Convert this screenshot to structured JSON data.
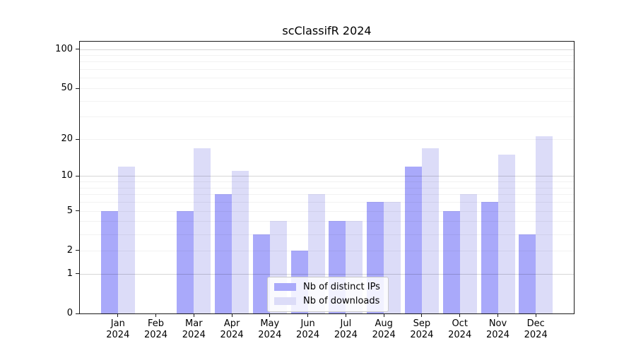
{
  "figure": {
    "title": "scClassifR 2024",
    "background": "#ffffff"
  },
  "legend": {
    "items": [
      {
        "label": "Nb of distinct IPs",
        "color": "#a9a9fa"
      },
      {
        "label": "Nb of downloads",
        "color": "#dcdcf8"
      }
    ]
  },
  "chart_data": {
    "type": "bar",
    "title": "scClassifR 2024",
    "categories": [
      "Jan 2024",
      "Feb 2024",
      "Mar 2024",
      "Apr 2024",
      "May 2024",
      "Jun 2024",
      "Jul 2024",
      "Aug 2024",
      "Sep 2024",
      "Oct 2024",
      "Nov 2024",
      "Dec 2024"
    ],
    "x_tick_line1": [
      "Jan",
      "Feb",
      "Mar",
      "Apr",
      "May",
      "Jun",
      "Jul",
      "Aug",
      "Sep",
      "Oct",
      "Nov",
      "Dec"
    ],
    "x_tick_line2": "2024",
    "series": [
      {
        "name": "Nb of distinct IPs",
        "color": "#a9a9fa",
        "values": [
          5,
          0,
          5,
          7,
          3,
          2,
          4,
          6,
          12,
          5,
          6,
          3
        ]
      },
      {
        "name": "Nb of downloads",
        "color": "#dcdcf8",
        "values": [
          12,
          0,
          17,
          11,
          4,
          7,
          4,
          6,
          17,
          7,
          15,
          21
        ]
      }
    ],
    "xlabel": "",
    "ylabel": "",
    "yscale": "log1p",
    "yticks": [
      0,
      1,
      2,
      5,
      10,
      20,
      50,
      100
    ],
    "ylim": [
      0,
      114
    ],
    "grid": {
      "major_values": [
        1,
        10,
        100
      ],
      "minor_values": [
        2,
        3,
        4,
        5,
        6,
        7,
        8,
        9,
        20,
        30,
        40,
        50,
        60,
        70,
        80,
        90
      ]
    },
    "legend_position": "lower center"
  }
}
